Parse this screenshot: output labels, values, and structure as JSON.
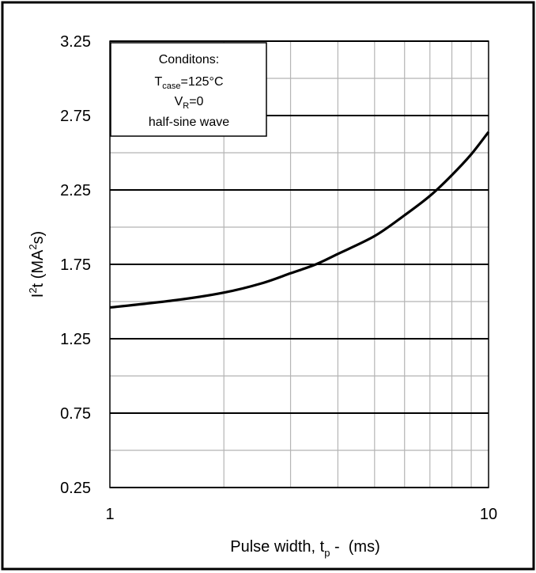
{
  "chart_data": {
    "type": "line",
    "xscale": "log",
    "xlim": [
      1,
      10
    ],
    "ylim": [
      0.25,
      3.25
    ],
    "grid": true,
    "xticks": [
      {
        "value": 1,
        "label": "1"
      },
      {
        "value": 10,
        "label": "10"
      }
    ],
    "yticks": [
      {
        "value": 0.25,
        "label": "0.25"
      },
      {
        "value": 0.75,
        "label": "0.75"
      },
      {
        "value": 1.25,
        "label": "1.25"
      },
      {
        "value": 1.75,
        "label": "1.75"
      },
      {
        "value": 2.25,
        "label": "2.25"
      },
      {
        "value": 2.75,
        "label": "2.75"
      },
      {
        "value": 3.25,
        "label": "3.25"
      }
    ],
    "xlabel": {
      "main": "Pulse width, t",
      "sub": "p",
      "tail": " -  (ms)"
    },
    "ylabel": {
      "pre": "I",
      "sup1": "2",
      "mid": "t (MA",
      "sup2": "2",
      "post": "s)"
    },
    "annotation": {
      "line1": "Conditons:",
      "line2_main": "T",
      "line2_sub": "case",
      "line2_tail": "=125°C",
      "line3_main": "V",
      "line3_sub": "R",
      "line3_tail": "=0",
      "line4": "half-sine wave"
    },
    "series": [
      {
        "x": [
          1,
          1.5,
          2,
          2.5,
          3,
          3.5,
          4,
          5,
          6,
          7,
          8,
          9,
          10
        ],
        "y": [
          1.46,
          1.51,
          1.56,
          1.62,
          1.69,
          1.75,
          1.82,
          1.94,
          2.08,
          2.21,
          2.35,
          2.49,
          2.64
        ]
      }
    ]
  }
}
